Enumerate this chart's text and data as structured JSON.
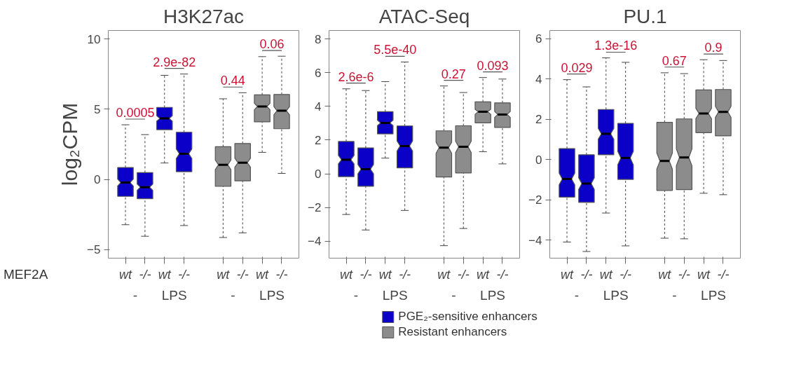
{
  "chart_data": [
    {
      "type": "box",
      "title": "H3K27ac",
      "ylabel": "log₂CPM",
      "xlabel": "MEF2A",
      "categories": [
        "wt",
        "-/-",
        "wt",
        "-/-",
        null,
        "wt",
        "-/-",
        "wt",
        "-/-"
      ],
      "ylim": [
        -5.6,
        10.6
      ],
      "yticks": [
        -5,
        0,
        5,
        10
      ],
      "series": [
        {
          "color": "#0a00c8",
          "boxes": [
            {
              "low": -3.22,
              "q1": -1.2,
              "median": -0.22,
              "q3": 0.85,
              "high": 3.89
            },
            {
              "low": -4.04,
              "q1": -1.37,
              "median": -0.55,
              "q3": 0.49,
              "high": 3.19
            },
            {
              "low": 1.17,
              "q1": 3.54,
              "median": 4.34,
              "q3": 5.13,
              "high": 7.41
            },
            {
              "low": -3.28,
              "q1": 0.55,
              "median": 1.83,
              "q3": 3.36,
              "high": 7.5
            },
            null,
            null,
            null,
            null,
            null
          ]
        },
        {
          "color": "#8c8c8c",
          "boxes": [
            null,
            null,
            null,
            null,
            null,
            {
              "low": -4.13,
              "q1": -0.49,
              "median": 1.04,
              "q3": 2.33,
              "high": 5.74
            },
            {
              "low": -3.8,
              "q1": -0.1,
              "median": 1.19,
              "q3": 2.56,
              "high": 6.17
            },
            {
              "low": 1.93,
              "q1": 4.1,
              "median": 5.19,
              "q3": 6.02,
              "high": 8.74
            },
            {
              "low": 0.43,
              "q1": 3.61,
              "median": 4.89,
              "q3": 6.05,
              "high": 8.77
            }
          ]
        }
      ],
      "annotations": [
        "0.0005",
        "2.9e-82",
        "0.44",
        "0.06",
        "-",
        "LPS",
        "-",
        "LPS"
      ]
    },
    {
      "type": "box",
      "title": "ATAC-Seq",
      "categories": [
        "wt",
        "-/-",
        "wt",
        "-/-",
        null,
        "wt",
        "-/-",
        "wt",
        "-/-"
      ],
      "ylim": [
        -5,
        8.5
      ],
      "yticks": [
        -4,
        -2,
        0,
        2,
        4,
        6,
        8
      ],
      "legend": "bottom",
      "series": [
        {
          "name": "PGE₂-sensitive enhancers",
          "color": "#0a00c8",
          "boxes": [
            {
              "low": -2.41,
              "q1": -0.17,
              "median": 0.84,
              "q3": 1.92,
              "high": 5.04
            },
            {
              "low": -3.33,
              "q1": -0.74,
              "median": 0.28,
              "q3": 1.54,
              "high": 4.94
            },
            {
              "low": 0.93,
              "q1": 2.37,
              "median": 3.02,
              "q3": 3.69,
              "high": 5.47
            },
            {
              "low": -2.17,
              "q1": 0.35,
              "median": 1.65,
              "q3": 2.84,
              "high": 6.63
            },
            null,
            null,
            null,
            null,
            null
          ]
        },
        {
          "name": "Resistant enhancers",
          "color": "#8c8c8c",
          "boxes": [
            null,
            null,
            null,
            null,
            null,
            {
              "low": -4.26,
              "q1": -0.19,
              "median": 1.55,
              "q3": 2.55,
              "high": 5.21
            },
            {
              "low": -3.24,
              "q1": 0.05,
              "median": 1.6,
              "q3": 2.85,
              "high": 4.82
            },
            {
              "low": 1.31,
              "q1": 3.02,
              "median": 3.68,
              "q3": 4.27,
              "high": 5.71
            },
            {
              "low": 0.59,
              "q1": 2.75,
              "median": 3.52,
              "q3": 4.21,
              "high": 5.62
            }
          ]
        }
      ],
      "annotations": [
        "2.6e-6",
        "5.5e-40",
        "0.27",
        "0.093",
        "-",
        "LPS",
        "-",
        "LPS"
      ]
    },
    {
      "type": "box",
      "title": "PU.1",
      "categories": [
        "wt",
        "-/-",
        "wt",
        "-/-",
        null,
        "wt",
        "-/-",
        "wt",
        "-/-"
      ],
      "ylim": [
        -4.9,
        6.4
      ],
      "yticks": [
        -4,
        -2,
        0,
        2,
        4,
        6
      ],
      "series": [
        {
          "color": "#0a00c8",
          "boxes": [
            {
              "low": -4.1,
              "q1": -1.87,
              "median": -0.97,
              "q3": 0.54,
              "high": 3.96
            },
            {
              "low": -4.57,
              "q1": -2.13,
              "median": -1.2,
              "q3": 0.23,
              "high": 3.6
            },
            {
              "low": -2.66,
              "q1": 0.23,
              "median": 1.27,
              "q3": 2.48,
              "high": 5.04
            },
            {
              "low": -4.29,
              "q1": -0.99,
              "median": 0.07,
              "q3": 1.79,
              "high": 4.82
            },
            null,
            null,
            null,
            null,
            null
          ]
        },
        {
          "color": "#8c8c8c",
          "boxes": [
            null,
            null,
            null,
            null,
            null,
            {
              "low": -3.91,
              "q1": -1.54,
              "median": -0.08,
              "q3": 1.84,
              "high": 4.3
            },
            {
              "low": -3.94,
              "q1": -1.5,
              "median": 0.1,
              "q3": 2.01,
              "high": 4.26
            },
            {
              "low": -1.68,
              "q1": 1.33,
              "median": 2.28,
              "q3": 3.45,
              "high": 4.95
            },
            {
              "low": -1.75,
              "q1": 1.17,
              "median": 2.36,
              "q3": 3.47,
              "high": 4.91
            }
          ]
        }
      ],
      "annotations": [
        "0.029",
        "1.3e-16",
        "0.67",
        "0.9",
        "-",
        "LPS",
        "-",
        "LPS"
      ]
    }
  ]
}
